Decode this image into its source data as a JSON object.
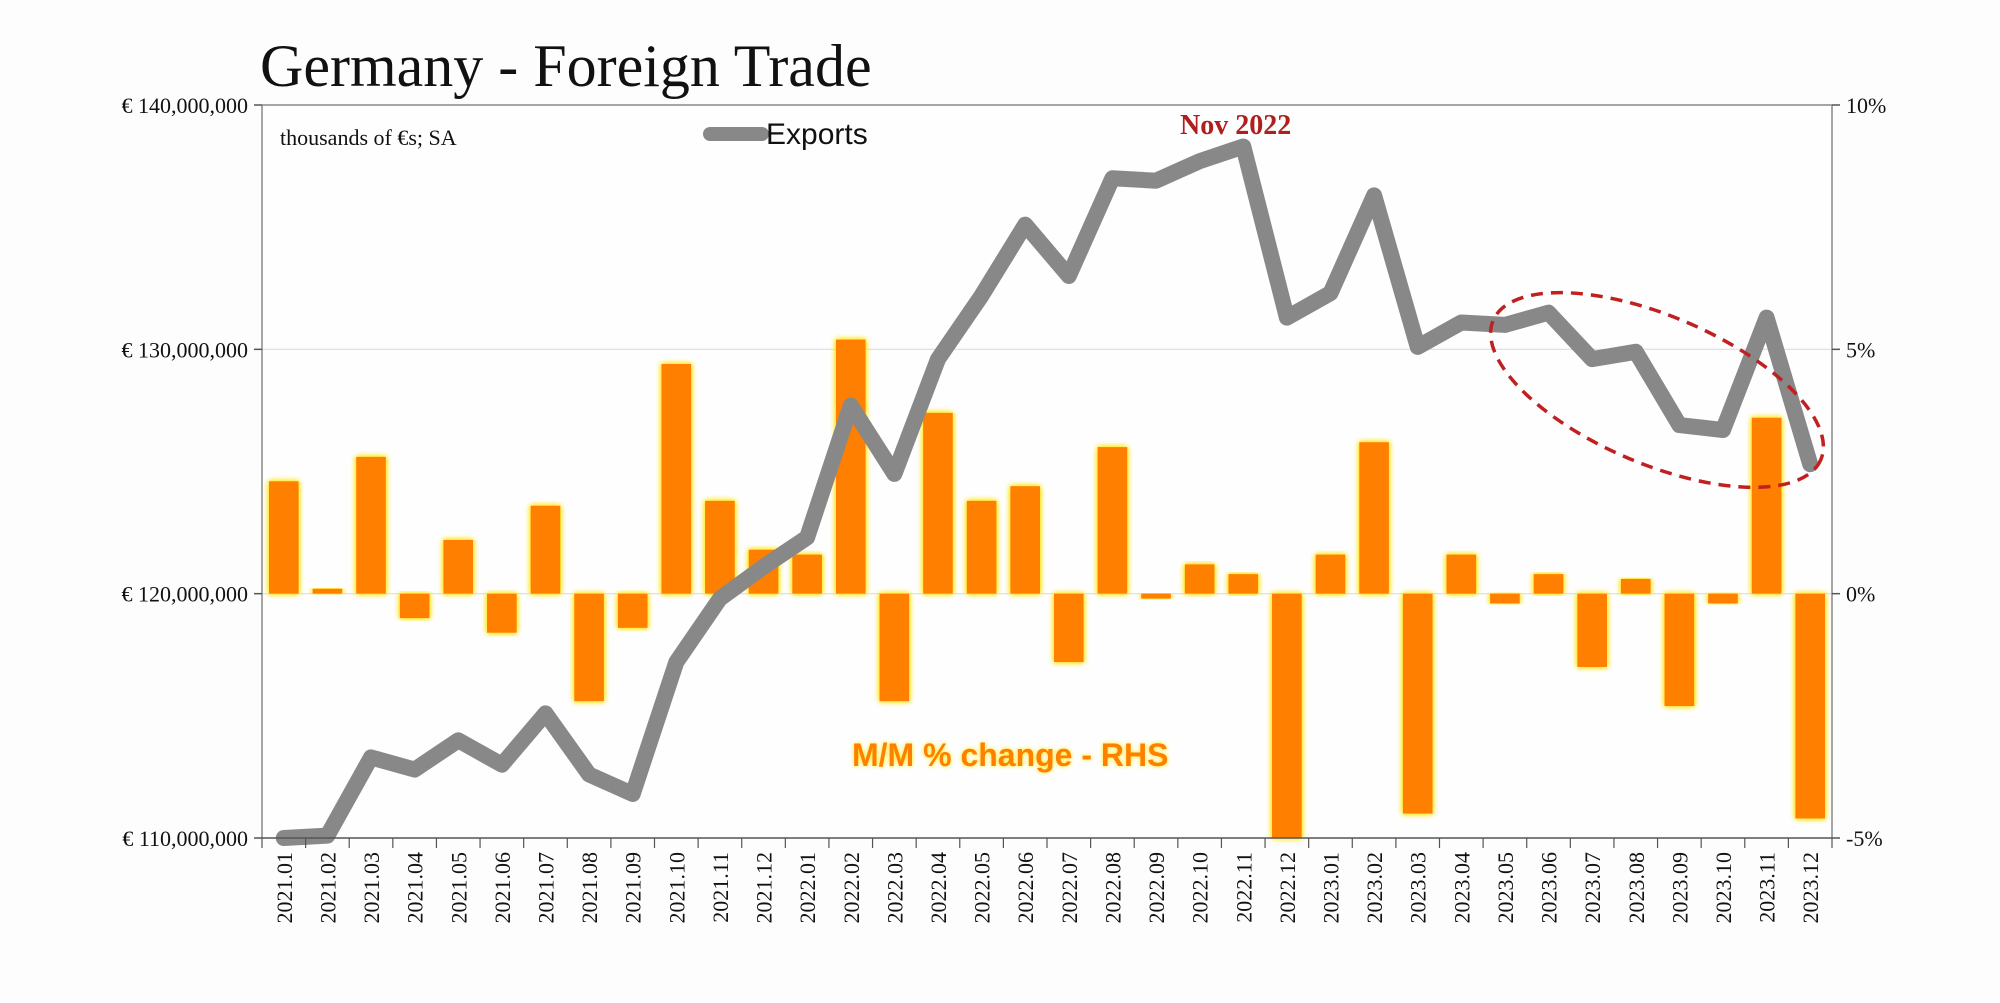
{
  "chart_data": {
    "type": "bar+line",
    "title": "Germany - Foreign Trade",
    "unit_note": "thousands of €s; SA",
    "categories": [
      "2021.01",
      "2021.02",
      "2021.03",
      "2021.04",
      "2021.05",
      "2021.06",
      "2021.07",
      "2021.08",
      "2021.09",
      "2021.10",
      "2021.11",
      "2021.12",
      "2022.01",
      "2022.02",
      "2022.03",
      "2022.04",
      "2022.05",
      "2022.06",
      "2022.07",
      "2022.08",
      "2022.09",
      "2022.10",
      "2022.11",
      "2022.12",
      "2023.01",
      "2023.02",
      "2023.03",
      "2023.04",
      "2023.05",
      "2023.06",
      "2023.07",
      "2023.08",
      "2023.09",
      "2023.10",
      "2023.11",
      "2023.12"
    ],
    "series": [
      {
        "name": "Exports",
        "type": "line",
        "axis": "left",
        "color": "#888888",
        "values": [
          110000000,
          110100000,
          113300000,
          112800000,
          114000000,
          113000000,
          115100000,
          112600000,
          111800000,
          117200000,
          119800000,
          121100000,
          122300000,
          127700000,
          124900000,
          129600000,
          132200000,
          135100000,
          133000000,
          137000000,
          136900000,
          137700000,
          138300000,
          131300000,
          132300000,
          136300000,
          130100000,
          131100000,
          131000000,
          131500000,
          129600000,
          129900000,
          126900000,
          126700000,
          131300000,
          125300000
        ]
      },
      {
        "name": "M/M % change - RHS",
        "type": "bar",
        "axis": "right",
        "color": "#ff7f00",
        "values": [
          2.3,
          0.1,
          2.8,
          -0.5,
          1.1,
          -0.8,
          1.8,
          -2.2,
          -0.7,
          4.7,
          1.9,
          0.9,
          0.8,
          5.2,
          -2.2,
          3.7,
          1.9,
          2.2,
          -1.4,
          3.0,
          -0.1,
          0.6,
          0.4,
          -5.0,
          0.8,
          3.1,
          -4.5,
          0.8,
          -0.2,
          0.4,
          -1.5,
          0.3,
          -2.3,
          -0.2,
          3.6,
          -4.6
        ]
      }
    ],
    "y_left": {
      "min": 110000000,
      "max": 140000000,
      "ticks": [
        110000000,
        120000000,
        130000000,
        140000000
      ],
      "tick_labels": [
        "€ 110,000,000",
        "€ 120,000,000",
        "€ 130,000,000",
        "€ 140,000,000"
      ]
    },
    "y_right": {
      "min": -5,
      "max": 10,
      "ticks": [
        -5,
        0,
        5,
        10
      ],
      "tick_labels": [
        "-5%",
        "0%",
        "5%",
        "10%"
      ]
    },
    "legend": {
      "label": "Exports",
      "placement": "top"
    },
    "annotations": {
      "peak_label": "Nov 2022",
      "bar_series_label": "M/M % change - RHS"
    },
    "grid": true,
    "highlight_oval_color": "#c0201f"
  }
}
